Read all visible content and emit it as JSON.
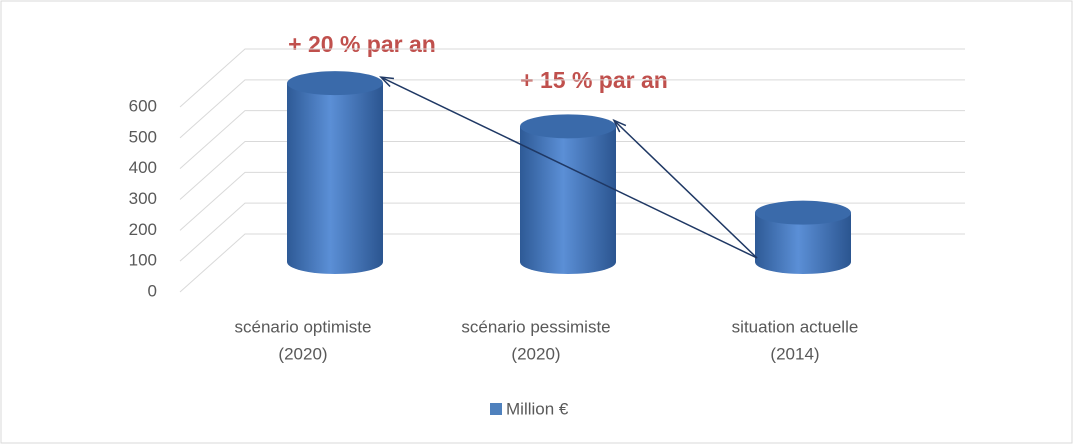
{
  "chart_data": {
    "type": "cylinder",
    "categories": [
      [
        "scénario optimiste",
        "(2020)"
      ],
      [
        "scénario pessimiste",
        "(2020)"
      ],
      [
        "situation actuelle",
        "(2014)"
      ]
    ],
    "series": [
      {
        "name": "Million €",
        "color": "#4f81bd",
        "values": [
          580,
          440,
          160
        ]
      }
    ],
    "ylim": [
      0,
      600
    ],
    "yticks": [
      0,
      100,
      200,
      300,
      400,
      500,
      600
    ],
    "grid": true,
    "annotations": [
      "+ 20 % par an",
      "+ 15 % par an"
    ]
  }
}
